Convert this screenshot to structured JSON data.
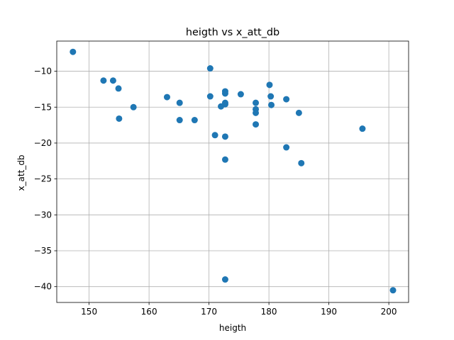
{
  "chart_data": {
    "type": "scatter",
    "title": "heigth vs x_att_db",
    "xlabel": "heigth",
    "ylabel": "x_att_db",
    "xlim": [
      144.6,
      203.3
    ],
    "ylim": [
      -42.2,
      -5.8
    ],
    "xticks": [
      150,
      160,
      170,
      180,
      190,
      200
    ],
    "yticks": [
      -40,
      -35,
      -30,
      -25,
      -20,
      -15,
      -10
    ],
    "grid": true,
    "color": "#1f77b4",
    "points": [
      {
        "x": 147.3,
        "y": -7.3
      },
      {
        "x": 152.4,
        "y": -11.3
      },
      {
        "x": 154.0,
        "y": -11.3
      },
      {
        "x": 154.9,
        "y": -12.4
      },
      {
        "x": 155.0,
        "y": -16.6
      },
      {
        "x": 157.4,
        "y": -15.0
      },
      {
        "x": 163.0,
        "y": -13.6
      },
      {
        "x": 165.1,
        "y": -14.4
      },
      {
        "x": 165.1,
        "y": -16.8
      },
      {
        "x": 167.6,
        "y": -16.8
      },
      {
        "x": 170.2,
        "y": -9.6
      },
      {
        "x": 170.2,
        "y": -13.5
      },
      {
        "x": 171.0,
        "y": -18.9
      },
      {
        "x": 172.0,
        "y": -14.9
      },
      {
        "x": 172.7,
        "y": -12.8
      },
      {
        "x": 172.7,
        "y": -13.1
      },
      {
        "x": 172.7,
        "y": -14.4
      },
      {
        "x": 172.7,
        "y": -14.6
      },
      {
        "x": 172.7,
        "y": -19.1
      },
      {
        "x": 172.7,
        "y": -22.3
      },
      {
        "x": 172.7,
        "y": -39.0
      },
      {
        "x": 175.3,
        "y": -13.2
      },
      {
        "x": 177.8,
        "y": -14.4
      },
      {
        "x": 177.8,
        "y": -15.3
      },
      {
        "x": 177.8,
        "y": -15.8
      },
      {
        "x": 177.8,
        "y": -17.4
      },
      {
        "x": 180.1,
        "y": -11.9
      },
      {
        "x": 180.3,
        "y": -13.5
      },
      {
        "x": 180.4,
        "y": -14.7
      },
      {
        "x": 182.9,
        "y": -13.9
      },
      {
        "x": 182.9,
        "y": -20.6
      },
      {
        "x": 185.0,
        "y": -15.8
      },
      {
        "x": 185.4,
        "y": -22.8
      },
      {
        "x": 195.6,
        "y": -18.0
      },
      {
        "x": 200.7,
        "y": -40.5
      }
    ]
  }
}
